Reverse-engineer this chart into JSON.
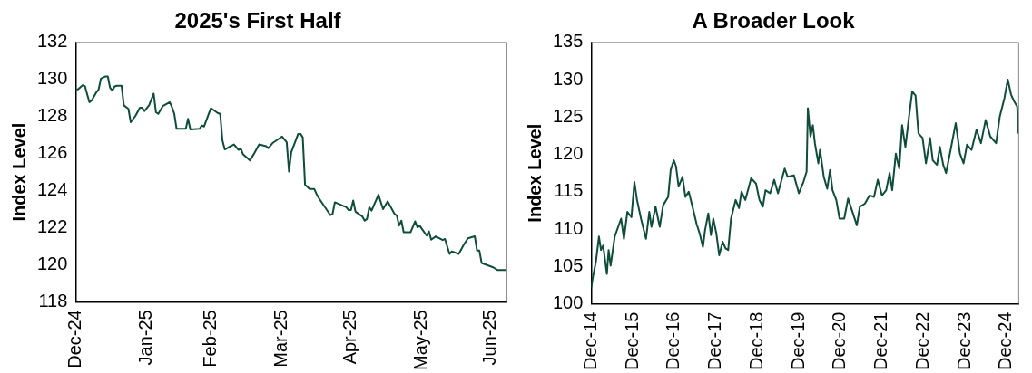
{
  "chart_data": [
    {
      "type": "line",
      "title": "2025's First Half",
      "ylabel": "Index Level",
      "grid": false,
      "legend": false,
      "marker": "none",
      "line_style": "solid",
      "xlim": [
        "2024-12-31",
        "2025-07-07"
      ],
      "ylim": [
        118,
        132
      ],
      "yticks": [
        118,
        120,
        122,
        124,
        126,
        128,
        130,
        132
      ],
      "xticks": [
        {
          "value": "2024-12-31",
          "label": "Dec-24"
        },
        {
          "value": "2025-01-31",
          "label": "Jan-25"
        },
        {
          "value": "2025-02-28",
          "label": "Feb-25"
        },
        {
          "value": "2025-03-31",
          "label": "Mar-25"
        },
        {
          "value": "2025-04-30",
          "label": "Apr-25"
        },
        {
          "value": "2025-05-31",
          "label": "May-25"
        },
        {
          "value": "2025-06-30",
          "label": "Jun-25"
        }
      ],
      "series": [
        {
          "color": "#0e4d3a",
          "x": [
            "2024-12-31",
            "2025-01-01",
            "2025-01-03",
            "2025-01-04",
            "2025-01-06",
            "2025-01-07",
            "2025-01-09",
            "2025-01-10",
            "2025-01-11",
            "2025-01-13",
            "2025-01-14",
            "2025-01-15",
            "2025-01-16",
            "2025-01-17",
            "2025-01-18",
            "2025-01-20",
            "2025-01-21",
            "2025-01-23",
            "2025-01-24",
            "2025-01-26",
            "2025-01-28",
            "2025-01-29",
            "2025-01-30",
            "2025-02-01",
            "2025-02-03",
            "2025-02-04",
            "2025-02-05",
            "2025-02-07",
            "2025-02-10",
            "2025-02-11",
            "2025-02-12",
            "2025-02-13",
            "2025-02-17",
            "2025-02-18",
            "2025-02-19",
            "2025-02-23",
            "2025-02-24",
            "2025-02-25",
            "2025-02-27",
            "2025-02-28",
            "2025-03-03",
            "2025-03-04",
            "2025-03-05",
            "2025-03-06",
            "2025-03-10",
            "2025-03-12",
            "2025-03-13",
            "2025-03-14",
            "2025-03-17",
            "2025-03-19",
            "2025-03-21",
            "2025-03-24",
            "2025-03-25",
            "2025-03-27",
            "2025-03-31",
            "2025-04-02",
            "2025-04-03",
            "2025-04-04",
            "2025-04-07",
            "2025-04-08",
            "2025-04-09",
            "2025-04-10",
            "2025-04-12",
            "2025-04-14",
            "2025-04-15",
            "2025-04-16",
            "2025-04-18",
            "2025-04-21",
            "2025-04-22",
            "2025-04-23",
            "2025-04-28",
            "2025-04-29",
            "2025-04-30",
            "2025-05-01",
            "2025-05-02",
            "2025-05-05",
            "2025-05-06",
            "2025-05-07",
            "2025-05-08",
            "2025-05-09",
            "2025-05-12",
            "2025-05-14",
            "2025-05-16",
            "2025-05-19",
            "2025-05-20",
            "2025-05-21",
            "2025-05-22",
            "2025-05-23",
            "2025-05-26",
            "2025-05-28",
            "2025-05-29",
            "2025-05-30",
            "2025-06-02",
            "2025-06-03",
            "2025-06-04",
            "2025-06-06",
            "2025-06-09",
            "2025-06-10",
            "2025-06-12",
            "2025-06-13",
            "2025-06-16",
            "2025-06-18",
            "2025-06-20",
            "2025-06-23",
            "2025-06-24",
            "2025-06-25",
            "2025-06-26",
            "2025-06-27",
            "2025-07-01",
            "2025-07-03",
            "2025-07-07"
          ],
          "values": [
            129.46,
            129.46,
            129.68,
            129.64,
            128.77,
            128.86,
            129.3,
            129.46,
            130.04,
            130.16,
            130.16,
            129.55,
            129.4,
            129.62,
            129.66,
            129.66,
            128.6,
            128.41,
            127.69,
            128.02,
            128.47,
            128.47,
            128.29,
            128.6,
            129.23,
            128.23,
            128.14,
            128.56,
            128.77,
            128.5,
            128.14,
            127.33,
            127.33,
            127.87,
            127.3,
            127.33,
            127.51,
            127.46,
            128.14,
            128.45,
            128.18,
            128.14,
            126.7,
            126.22,
            126.49,
            126.2,
            126.25,
            125.95,
            125.62,
            126.04,
            126.49,
            126.4,
            126.29,
            126.58,
            126.92,
            126.61,
            125.03,
            126.07,
            127.06,
            127.06,
            126.88,
            124.32,
            124.09,
            124.09,
            123.82,
            123.6,
            123.23,
            122.68,
            122.74,
            123.37,
            123.1,
            122.95,
            122.95,
            123.46,
            122.86,
            122.6,
            122.38,
            122.47,
            123.1,
            122.92,
            123.78,
            123.0,
            123.42,
            122.74,
            122.65,
            122.11,
            122.38,
            121.75,
            121.75,
            122.34,
            122.02,
            122.1,
            121.57,
            121.8,
            121.35,
            121.53,
            121.33,
            121.39,
            120.58,
            120.72,
            120.58,
            121.03,
            121.42,
            121.53,
            120.76,
            120.76,
            120.09,
            120.04,
            119.86,
            119.71,
            119.71
          ]
        }
      ]
    },
    {
      "type": "line",
      "title": "A Broader Look",
      "ylabel": "Index Level",
      "grid": false,
      "legend": false,
      "marker": "none",
      "line_style": "solid",
      "xlim": [
        "2014-12-31",
        "2025-04-18"
      ],
      "ylim": [
        100,
        135
      ],
      "yticks": [
        100,
        105,
        110,
        115,
        120,
        125,
        130,
        135
      ],
      "xticks": [
        {
          "value": "2014-12-31",
          "label": "Dec-14"
        },
        {
          "value": "2015-12-31",
          "label": "Dec-15"
        },
        {
          "value": "2016-12-31",
          "label": "Dec-16"
        },
        {
          "value": "2017-12-31",
          "label": "Dec-17"
        },
        {
          "value": "2018-12-31",
          "label": "Dec-18"
        },
        {
          "value": "2019-12-31",
          "label": "Dec-19"
        },
        {
          "value": "2020-12-31",
          "label": "Dec-20"
        },
        {
          "value": "2021-12-31",
          "label": "Dec-21"
        },
        {
          "value": "2022-12-31",
          "label": "Dec-22"
        },
        {
          "value": "2023-12-31",
          "label": "Dec-23"
        },
        {
          "value": "2024-12-31",
          "label": "Dec-24"
        }
      ],
      "series": [
        {
          "color": "#0e4d3a",
          "x": [
            "2015-01-01",
            "2015-01-15",
            "2015-02-10",
            "2015-03-09",
            "2015-03-27",
            "2015-04-15",
            "2015-05-18",
            "2015-06-02",
            "2015-06-20",
            "2015-07-26",
            "2015-09-20",
            "2015-10-15",
            "2015-11-14",
            "2015-12-20",
            "2016-01-15",
            "2016-02-07",
            "2016-03-13",
            "2016-04-26",
            "2016-05-25",
            "2016-06-13",
            "2016-07-19",
            "2016-08-25",
            "2016-09-24",
            "2016-11-07",
            "2016-11-29",
            "2016-12-27",
            "2017-01-15",
            "2017-02-07",
            "2017-03-13",
            "2017-04-08",
            "2017-05-07",
            "2017-06-09",
            "2017-07-15",
            "2017-08-11",
            "2017-09-09",
            "2017-09-27",
            "2017-10-26",
            "2017-11-18",
            "2017-12-09",
            "2018-01-05",
            "2018-01-30",
            "2018-03-02",
            "2018-03-27",
            "2018-04-19",
            "2018-05-14",
            "2018-06-24",
            "2018-07-23",
            "2018-08-14",
            "2018-09-17",
            "2018-11-07",
            "2018-12-20",
            "2019-01-19",
            "2019-02-18",
            "2019-03-13",
            "2019-04-23",
            "2019-05-29",
            "2019-07-01",
            "2019-08-29",
            "2019-09-24",
            "2019-11-18",
            "2020-01-01",
            "2020-02-10",
            "2020-03-09",
            "2020-03-20",
            "2020-04-12",
            "2020-05-03",
            "2020-05-21",
            "2020-06-20",
            "2020-07-05",
            "2020-08-07",
            "2020-09-06",
            "2020-10-01",
            "2020-10-23",
            "2020-11-25",
            "2020-12-24",
            "2021-02-03",
            "2021-03-09",
            "2021-04-12",
            "2021-05-25",
            "2021-06-20",
            "2021-08-03",
            "2021-09-13",
            "2021-10-23",
            "2021-11-25",
            "2022-01-01",
            "2022-02-07",
            "2022-03-09",
            "2022-04-01",
            "2022-05-03",
            "2022-06-02",
            "2022-06-27",
            "2022-07-26",
            "2022-08-25",
            "2022-09-24",
            "2022-10-23",
            "2022-11-18",
            "2022-12-24",
            "2023-01-23",
            "2023-02-28",
            "2023-03-24",
            "2023-04-30",
            "2023-05-25",
            "2023-06-24",
            "2023-07-19",
            "2023-09-02",
            "2023-10-12",
            "2023-11-18",
            "2023-12-20",
            "2024-01-19",
            "2024-02-28",
            "2024-04-12",
            "2024-05-21",
            "2024-07-01",
            "2024-08-11",
            "2024-10-01",
            "2024-11-03",
            "2024-12-13",
            "2025-01-12",
            "2025-02-10",
            "2025-03-09",
            "2025-04-05",
            "2025-04-15"
          ],
          "values": [
            102.2,
            103.6,
            105.6,
            109.0,
            107.2,
            107.8,
            104.0,
            107.2,
            105.1,
            109.0,
            111.4,
            108.7,
            112.3,
            111.6,
            116.3,
            113.9,
            111.4,
            108.7,
            112.3,
            110.3,
            113.0,
            110.3,
            113.2,
            114.3,
            117.9,
            119.2,
            118.4,
            115.7,
            117.0,
            114.3,
            115.0,
            113.0,
            110.7,
            109.4,
            107.6,
            109.8,
            112.1,
            109.2,
            111.4,
            109.4,
            106.5,
            108.3,
            107.4,
            107.2,
            111.4,
            113.9,
            112.8,
            115.0,
            113.9,
            116.8,
            116.1,
            113.9,
            113.0,
            115.2,
            114.8,
            116.6,
            114.8,
            118.1,
            117.0,
            117.2,
            114.8,
            116.3,
            117.7,
            126.2,
            122.4,
            123.9,
            121.5,
            118.8,
            120.6,
            117.0,
            115.4,
            117.9,
            115.2,
            113.9,
            111.4,
            111.4,
            114.1,
            112.5,
            110.5,
            113.0,
            113.4,
            114.5,
            114.3,
            116.6,
            114.5,
            115.2,
            117.5,
            115.2,
            120.1,
            118.1,
            123.9,
            121.0,
            124.8,
            128.4,
            127.9,
            122.8,
            122.2,
            118.8,
            122.2,
            119.2,
            118.6,
            121.0,
            118.6,
            117.5,
            121.0,
            124.2,
            120.1,
            118.8,
            121.3,
            120.6,
            123.3,
            121.5,
            124.6,
            122.4,
            121.5,
            125.1,
            127.5,
            130.0,
            128.0,
            127.1,
            126.4,
            122.8
          ]
        }
      ]
    }
  ]
}
